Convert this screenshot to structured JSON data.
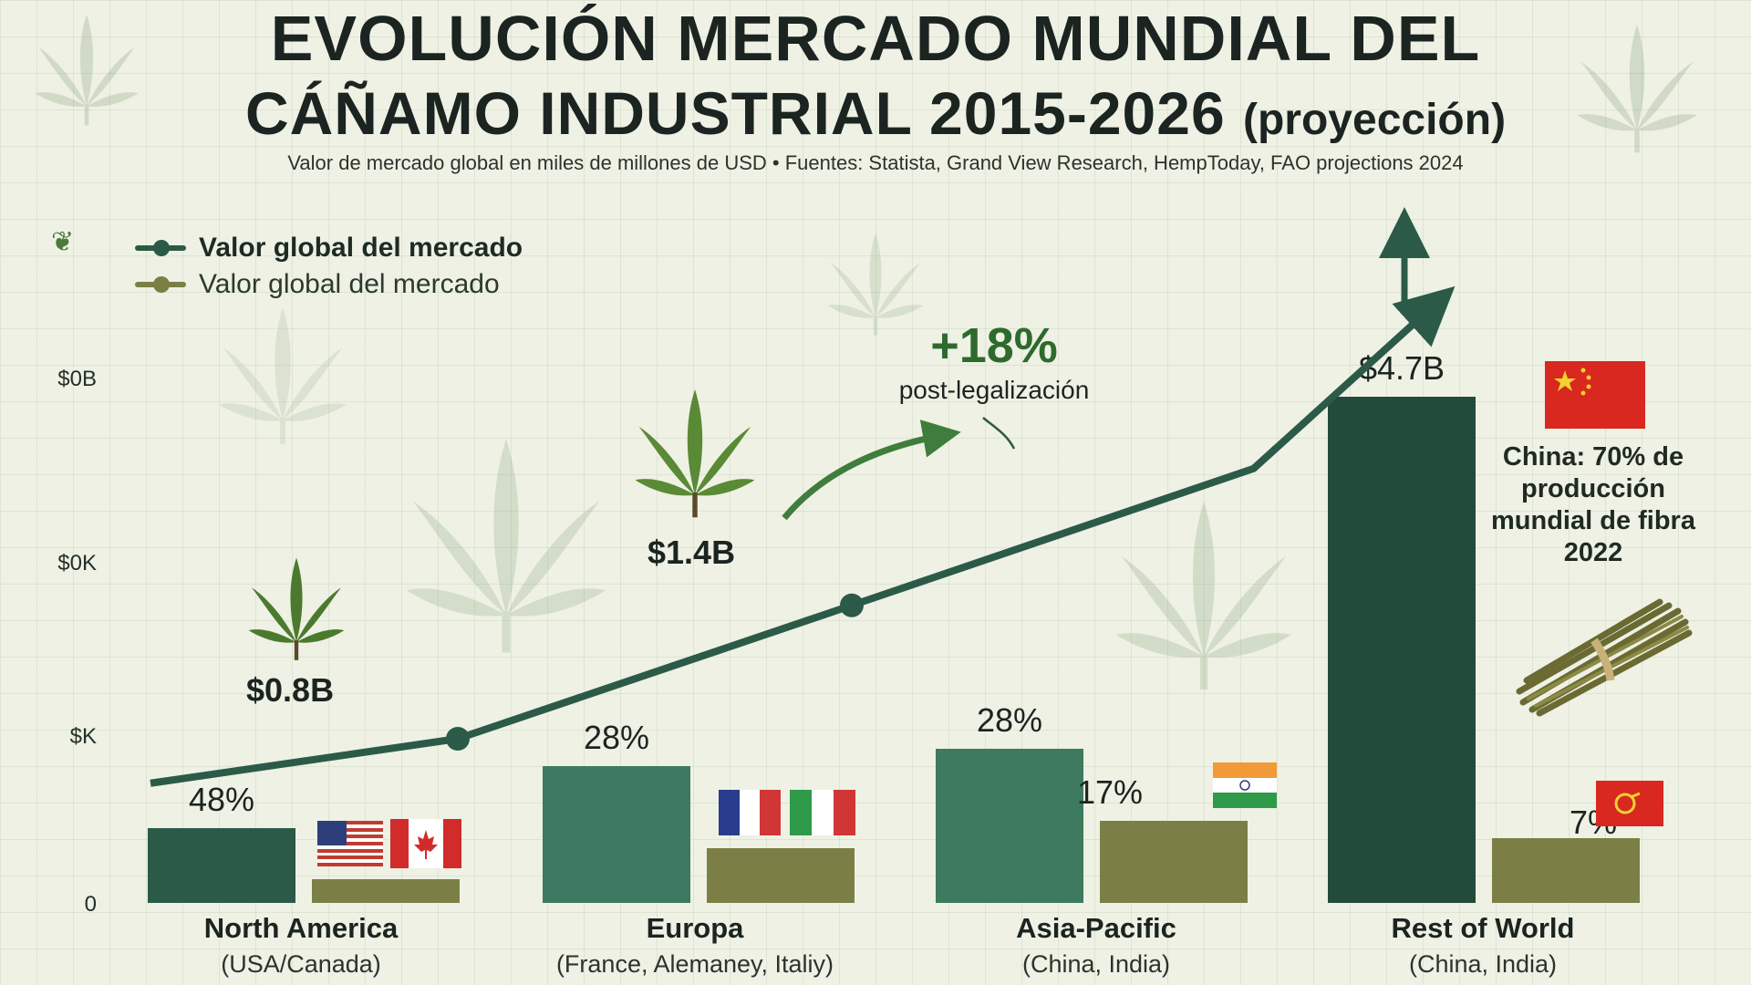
{
  "title_line1": "EVOLUCIÓN MERCADO MUNDIAL DEL",
  "title_line2": "CÁÑAMO INDUSTRIAL 2015-2026",
  "title_suffix": "(proyección)",
  "subtitle": "Valor de mercado global en miles de millones de USD • Fuentes: Statista, Grand View Research, HempToday, FAO projections 2024",
  "legend": [
    {
      "label": "Valor global del mercado",
      "color": "#2a5a46"
    },
    {
      "label": "Valor global del mercado",
      "color": "#7b7f45"
    }
  ],
  "y_ticks": [
    "$0B",
    "$0K",
    "$K",
    "0"
  ],
  "annotations": {
    "growth_pct": "+18%",
    "growth_note": "post-legalización",
    "china_note": "China: 70% de producción mundial de fibra 2022"
  },
  "colors": {
    "line": "#2c5a48",
    "bar_primary": [
      "#2c5a48",
      "#3e7a62",
      "#3d7a5f",
      "#234b3b"
    ],
    "bar_secondary": "#7b7f45",
    "arrow_light": "#3f7d3d",
    "background": "#eef1e4"
  },
  "icons": [
    "hemp-leaf-icon",
    "hemp-fiber-bundle-icon",
    "up-arrow-icon",
    "flag-usa-icon",
    "flag-canada-icon",
    "flag-france-icon",
    "flag-italy-icon",
    "flag-india-icon",
    "flag-china-icon"
  ],
  "chart_data": {
    "type": "bar",
    "categories": [
      {
        "name": "North America",
        "sub": "(USA/Canada)"
      },
      {
        "name": "Europa",
        "sub": "(France, Alemaney, Italiy)"
      },
      {
        "name": "Asia-Pacific",
        "sub": "(China, India)"
      },
      {
        "name": "Rest of World",
        "sub": "(China, India)"
      }
    ],
    "series": [
      {
        "values": [
          0.22,
          0.4,
          0.45,
          1.48
        ],
        "labels": [
          "48%",
          "28%",
          "28%",
          "$4.7B"
        ]
      },
      {
        "values": [
          0.07,
          0.16,
          0.24,
          0.19
        ],
        "labels": [
          "",
          "",
          "17%",
          "7%"
        ]
      }
    ],
    "line_series": {
      "points": [
        {
          "x": 0.0,
          "y": 0.35
        },
        {
          "x": 0.78,
          "y": 0.48,
          "label": "$0.8B"
        },
        {
          "x": 1.78,
          "y": 0.87,
          "label": "$1.4B"
        },
        {
          "x": 2.8,
          "y": 1.27
        },
        {
          "x": 3.27,
          "y": 1.76
        }
      ]
    },
    "ylim": [
      0,
      1.6
    ],
    "ylabel": "",
    "xlabel": "",
    "grid": true,
    "legend_position": "top-left"
  }
}
